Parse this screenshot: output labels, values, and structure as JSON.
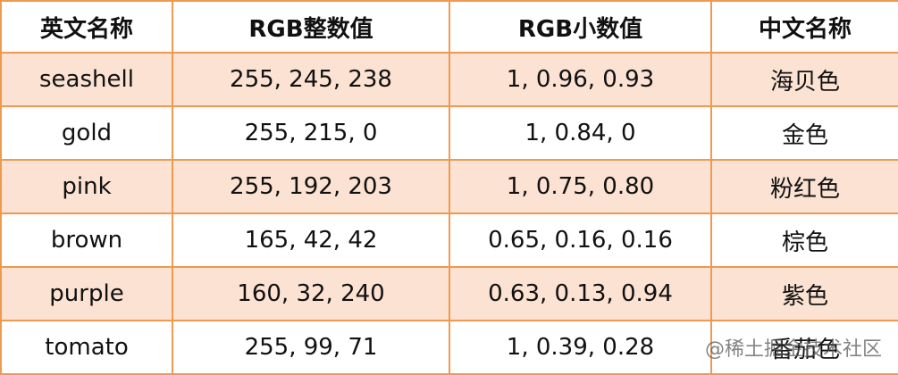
{
  "table": {
    "header": [
      "英文名称",
      "RGB整数值",
      "RGB小数值",
      "中文名称"
    ],
    "rows": [
      [
        "seashell",
        "255, 245, 238",
        "1, 0.96, 0.93",
        "海贝色"
      ],
      [
        "gold",
        "255, 215, 0",
        "1, 0.84, 0",
        "金色"
      ],
      [
        "pink",
        "255, 192, 203",
        "1, 0.75, 0.80",
        "粉红色"
      ],
      [
        "brown",
        "165, 42, 42",
        "0.65, 0.16, 0.16",
        "棕色"
      ],
      [
        "purple",
        "160, 32, 240",
        "0.63, 0.13, 0.94",
        "紫色"
      ],
      [
        "tomato",
        "255, 99, 71",
        "1, 0.39, 0.28",
        "番茄色"
      ]
    ]
  },
  "watermark": "@稀土掘金技术社区"
}
